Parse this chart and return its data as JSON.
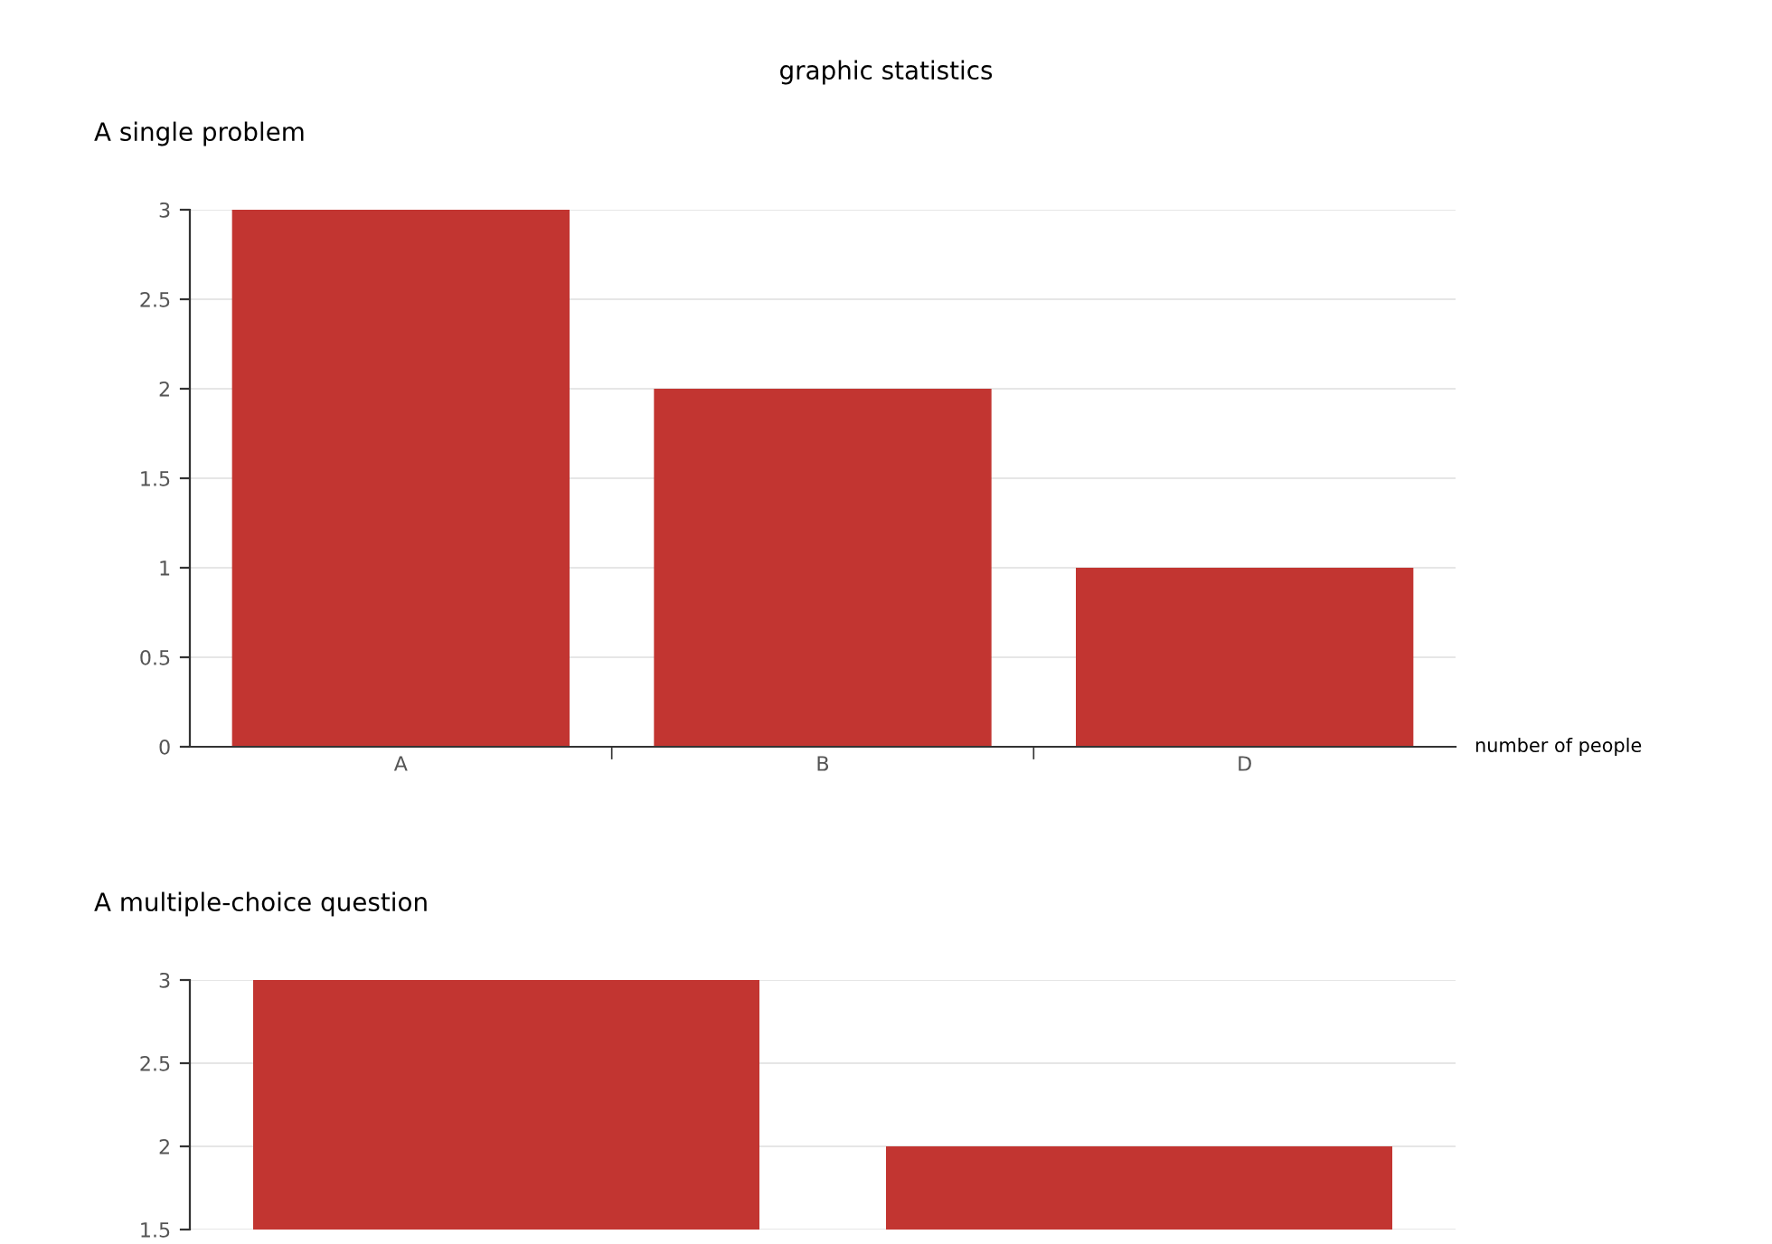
{
  "chart_data": [
    {
      "type": "bar",
      "title": "graphic statistics",
      "subtitle": "A single problem",
      "xlabel": "number of people",
      "categories": [
        "A",
        "B",
        "D"
      ],
      "values": [
        3,
        2,
        1
      ],
      "color": "#c23531",
      "ylim": [
        0,
        3
      ],
      "yticks": [
        0,
        0.5,
        1,
        1.5,
        2,
        2.5,
        3
      ],
      "grid": "y"
    },
    {
      "type": "bar",
      "subtitle": "A multiple-choice question",
      "categories": [
        null,
        null
      ],
      "values": [
        3,
        2
      ],
      "color": "#c23531",
      "ylim": [
        1.5,
        3
      ],
      "yticks": [
        1.5,
        2,
        2.5,
        3
      ],
      "grid": "y",
      "tick_labels": "y"
    }
  ]
}
